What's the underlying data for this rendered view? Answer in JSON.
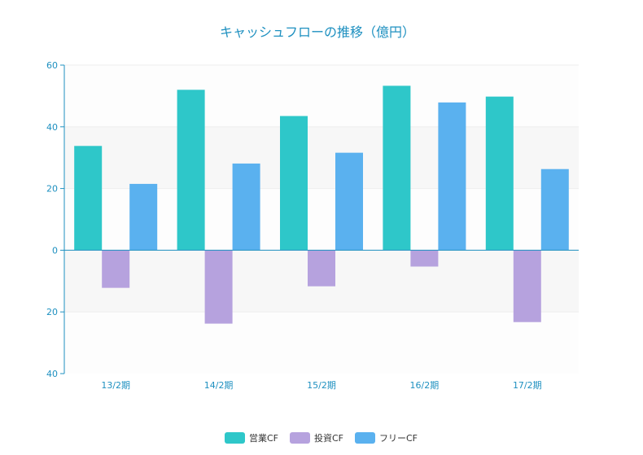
{
  "chart_data": {
    "type": "bar",
    "title": "キャッシュフローの推移（億円）",
    "categories": [
      "13/2期",
      "14/2期",
      "15/2期",
      "16/2期",
      "17/2期"
    ],
    "series": [
      {
        "name": "営業CF",
        "color": "#2ec7c9",
        "values": [
          33.8,
          52.0,
          43.5,
          53.3,
          49.8
        ]
      },
      {
        "name": "投資CF",
        "color": "#b6a2de",
        "values": [
          -12.2,
          -23.8,
          -11.7,
          -5.3,
          -23.3
        ]
      },
      {
        "name": "フリーCF",
        "color": "#5ab1ef",
        "values": [
          21.5,
          28.1,
          31.6,
          47.9,
          26.3
        ]
      }
    ],
    "yticks": [
      {
        "value": 60,
        "label": "60"
      },
      {
        "value": 40,
        "label": "40"
      },
      {
        "value": 20,
        "label": "20"
      },
      {
        "value": 0,
        "label": "0"
      },
      {
        "value": -20,
        "label": "20"
      },
      {
        "value": -40,
        "label": "40"
      }
    ],
    "ylim": [
      -40,
      60
    ],
    "xlabel": "",
    "ylabel": "",
    "legend_position": "bottom-center",
    "colors": {
      "axis": "#1e90c0",
      "band_light": "#fdfdfd",
      "band_dark": "#f7f7f7",
      "text": "#1e90c0"
    }
  }
}
